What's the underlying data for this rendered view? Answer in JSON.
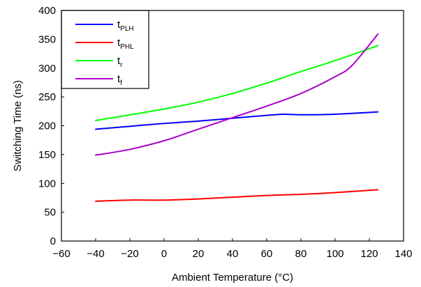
{
  "chart_data": {
    "type": "line",
    "xlabel": "Ambient Temperature (°C)",
    "ylabel": "Switching Time (ns)",
    "xlim": [
      -60,
      140
    ],
    "ylim": [
      0,
      400
    ],
    "xticks": [
      -60,
      -40,
      -20,
      0,
      20,
      40,
      60,
      80,
      100,
      120,
      140
    ],
    "yticks": [
      0,
      50,
      100,
      150,
      200,
      250,
      300,
      350,
      400
    ],
    "xtick_labels": [
      "−60",
      "−40",
      "−20",
      "0",
      "20",
      "40",
      "60",
      "80",
      "100",
      "120",
      "140"
    ],
    "ytick_labels": [
      "0",
      "50",
      "100",
      "150",
      "200",
      "250",
      "300",
      "350",
      "400"
    ],
    "grid": false,
    "legend_position": "top-left",
    "series": [
      {
        "name": "tPLH",
        "legend_main": "t",
        "legend_sub": "PLH",
        "color": "#0000ff",
        "x": [
          -40,
          -20,
          0,
          20,
          40,
          60,
          70,
          80,
          100,
          125
        ],
        "y": [
          194,
          199,
          204,
          208,
          213,
          218,
          220,
          219,
          220,
          224
        ]
      },
      {
        "name": "tPHL",
        "legend_main": "t",
        "legend_sub": "PHL",
        "color": "#ff0000",
        "x": [
          -40,
          -20,
          0,
          20,
          40,
          60,
          80,
          100,
          125
        ],
        "y": [
          69,
          71,
          71,
          73,
          76,
          79,
          81,
          84,
          89
        ]
      },
      {
        "name": "tr",
        "legend_main": "t",
        "legend_sub": "r",
        "color": "#00ff00",
        "x": [
          -40,
          -20,
          0,
          20,
          40,
          60,
          80,
          100,
          125
        ],
        "y": [
          209,
          219,
          229,
          241,
          256,
          274,
          294,
          313,
          339
        ]
      },
      {
        "name": "tf",
        "legend_main": "t",
        "legend_sub": "f",
        "color": "#aa00cc",
        "x": [
          -40,
          -20,
          0,
          20,
          40,
          60,
          80,
          100,
          110,
          125
        ],
        "y": [
          149,
          159,
          174,
          194,
          214,
          234,
          256,
          285,
          305,
          359
        ]
      }
    ]
  }
}
